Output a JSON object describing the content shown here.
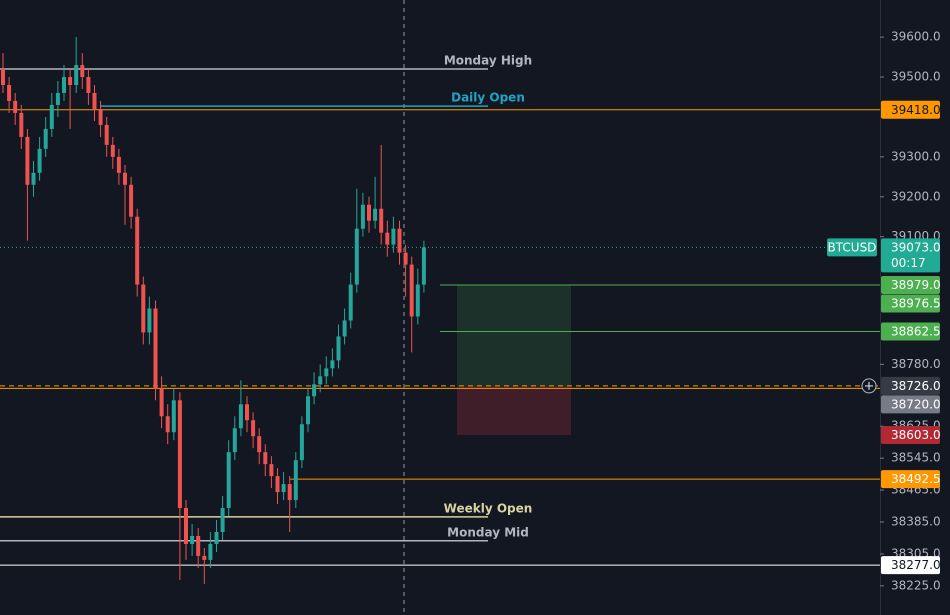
{
  "chart_data": {
    "type": "candlestick",
    "symbol": "BTCUSD",
    "countdown": "00:17",
    "ylim": [
      38152,
      39693
    ],
    "yticks": [
      {
        "value": 39600,
        "label": "39600.0"
      },
      {
        "value": 39500,
        "label": "39500.0"
      },
      {
        "value": 39300,
        "label": "39300.0"
      },
      {
        "value": 39200,
        "label": "39200.0"
      },
      {
        "value": 39100,
        "label": "39100.0"
      },
      {
        "value": 38780,
        "label": "38780.0"
      },
      {
        "value": 38625,
        "label": "38625.0"
      },
      {
        "value": 38545,
        "label": "38545.0"
      },
      {
        "value": 38465,
        "label": "38465.0"
      },
      {
        "value": 38385,
        "label": "38385.0"
      },
      {
        "value": 38305,
        "label": "38305.0"
      },
      {
        "value": 38225,
        "label": "38225.0"
      }
    ],
    "up_color": "#26a69a",
    "down_color": "#ef5350",
    "candles": [
      {
        "o": 39520,
        "h": 39560,
        "l": 39460,
        "c": 39480
      },
      {
        "o": 39480,
        "h": 39500,
        "l": 39410,
        "c": 39440
      },
      {
        "o": 39440,
        "h": 39460,
        "l": 39380,
        "c": 39410
      },
      {
        "o": 39410,
        "h": 39430,
        "l": 39320,
        "c": 39350
      },
      {
        "o": 39350,
        "h": 39370,
        "l": 39090,
        "c": 39230
      },
      {
        "o": 39230,
        "h": 39290,
        "l": 39200,
        "c": 39260
      },
      {
        "o": 39260,
        "h": 39350,
        "l": 39240,
        "c": 39320
      },
      {
        "o": 39320,
        "h": 39400,
        "l": 39300,
        "c": 39370
      },
      {
        "o": 39370,
        "h": 39460,
        "l": 39350,
        "c": 39430
      },
      {
        "o": 39430,
        "h": 39490,
        "l": 39400,
        "c": 39460
      },
      {
        "o": 39460,
        "h": 39530,
        "l": 39440,
        "c": 39500
      },
      {
        "o": 39500,
        "h": 39520,
        "l": 39370,
        "c": 39480
      },
      {
        "o": 39480,
        "h": 39600,
        "l": 39460,
        "c": 39530
      },
      {
        "o": 39530,
        "h": 39560,
        "l": 39470,
        "c": 39500
      },
      {
        "o": 39500,
        "h": 39520,
        "l": 39430,
        "c": 39460
      },
      {
        "o": 39460,
        "h": 39480,
        "l": 39390,
        "c": 39420
      },
      {
        "o": 39420,
        "h": 39440,
        "l": 39350,
        "c": 39380
      },
      {
        "o": 39380,
        "h": 39400,
        "l": 39300,
        "c": 39330
      },
      {
        "o": 39330,
        "h": 39350,
        "l": 39270,
        "c": 39300
      },
      {
        "o": 39300,
        "h": 39320,
        "l": 39230,
        "c": 39260
      },
      {
        "o": 39260,
        "h": 39280,
        "l": 39130,
        "c": 39230
      },
      {
        "o": 39230,
        "h": 39250,
        "l": 39120,
        "c": 39150
      },
      {
        "o": 39150,
        "h": 39170,
        "l": 38950,
        "c": 38980
      },
      {
        "o": 38980,
        "h": 39000,
        "l": 38830,
        "c": 38860
      },
      {
        "o": 38860,
        "h": 38950,
        "l": 38830,
        "c": 38920
      },
      {
        "o": 38920,
        "h": 38940,
        "l": 38690,
        "c": 38720
      },
      {
        "o": 38720,
        "h": 38750,
        "l": 38620,
        "c": 38650
      },
      {
        "o": 38650,
        "h": 38680,
        "l": 38580,
        "c": 38610
      },
      {
        "o": 38610,
        "h": 38720,
        "l": 38590,
        "c": 38690
      },
      {
        "o": 38690,
        "h": 38710,
        "l": 38240,
        "c": 38420
      },
      {
        "o": 38420,
        "h": 38440,
        "l": 38290,
        "c": 38330
      },
      {
        "o": 38330,
        "h": 38380,
        "l": 38300,
        "c": 38350
      },
      {
        "o": 38350,
        "h": 38370,
        "l": 38270,
        "c": 38300
      },
      {
        "o": 38300,
        "h": 38320,
        "l": 38230,
        "c": 38290
      },
      {
        "o": 38290,
        "h": 38360,
        "l": 38270,
        "c": 38330
      },
      {
        "o": 38330,
        "h": 38390,
        "l": 38310,
        "c": 38360
      },
      {
        "o": 38360,
        "h": 38450,
        "l": 38340,
        "c": 38420
      },
      {
        "o": 38420,
        "h": 38590,
        "l": 38400,
        "c": 38560
      },
      {
        "o": 38560,
        "h": 38650,
        "l": 38540,
        "c": 38620
      },
      {
        "o": 38620,
        "h": 38740,
        "l": 38600,
        "c": 38680
      },
      {
        "o": 38680,
        "h": 38700,
        "l": 38610,
        "c": 38640
      },
      {
        "o": 38640,
        "h": 38660,
        "l": 38570,
        "c": 38600
      },
      {
        "o": 38600,
        "h": 38620,
        "l": 38530,
        "c": 38560
      },
      {
        "o": 38560,
        "h": 38580,
        "l": 38500,
        "c": 38530
      },
      {
        "o": 38530,
        "h": 38550,
        "l": 38470,
        "c": 38500
      },
      {
        "o": 38500,
        "h": 38520,
        "l": 38430,
        "c": 38460
      },
      {
        "o": 38460,
        "h": 38510,
        "l": 38440,
        "c": 38480
      },
      {
        "o": 38480,
        "h": 38500,
        "l": 38360,
        "c": 38440
      },
      {
        "o": 38440,
        "h": 38560,
        "l": 38420,
        "c": 38540
      },
      {
        "o": 38540,
        "h": 38650,
        "l": 38520,
        "c": 38630
      },
      {
        "o": 38630,
        "h": 38720,
        "l": 38610,
        "c": 38700
      },
      {
        "o": 38700,
        "h": 38760,
        "l": 38680,
        "c": 38730
      },
      {
        "o": 38730,
        "h": 38780,
        "l": 38710,
        "c": 38750
      },
      {
        "o": 38750,
        "h": 38800,
        "l": 38730,
        "c": 38770
      },
      {
        "o": 38770,
        "h": 38820,
        "l": 38750,
        "c": 38790
      },
      {
        "o": 38790,
        "h": 38880,
        "l": 38770,
        "c": 38850
      },
      {
        "o": 38850,
        "h": 38920,
        "l": 38830,
        "c": 38890
      },
      {
        "o": 38890,
        "h": 39010,
        "l": 38870,
        "c": 38980
      },
      {
        "o": 38980,
        "h": 39220,
        "l": 38960,
        "c": 39120
      },
      {
        "o": 39120,
        "h": 39210,
        "l": 39100,
        "c": 39180
      },
      {
        "o": 39180,
        "h": 39200,
        "l": 39110,
        "c": 39140
      },
      {
        "o": 39140,
        "h": 39250,
        "l": 39120,
        "c": 39170
      },
      {
        "o": 39170,
        "h": 39330,
        "l": 39080,
        "c": 39110
      },
      {
        "o": 39110,
        "h": 39140,
        "l": 39050,
        "c": 39080
      },
      {
        "o": 39080,
        "h": 39150,
        "l": 39060,
        "c": 39120
      },
      {
        "o": 39120,
        "h": 39140,
        "l": 39030,
        "c": 39060
      },
      {
        "o": 39060,
        "h": 39080,
        "l": 38950,
        "c": 39030
      },
      {
        "o": 39030,
        "h": 39050,
        "l": 38810,
        "c": 38900
      },
      {
        "o": 38900,
        "h": 39020,
        "l": 38880,
        "c": 38980
      },
      {
        "o": 38980,
        "h": 39090,
        "l": 38960,
        "c": 39073
      }
    ],
    "levels": [
      {
        "label": "Monday High",
        "value": 39520,
        "color": "#b2b5be"
      },
      {
        "label": "Daily Open",
        "value": 39427,
        "color": "#22a3c5"
      },
      {
        "label": "Weekly Open",
        "value": 38398,
        "color": "#d8d3a0"
      },
      {
        "label": "Monday Mid",
        "value": 38338,
        "color": "#b2b5be"
      }
    ],
    "price_labels": [
      {
        "value": 39418,
        "label": "39418.0",
        "color": "#ff9800"
      },
      {
        "value": 39073,
        "label": "39073.0",
        "color": "#22ab94"
      },
      {
        "value": 38979,
        "label": "38979.0",
        "color": "#4caf50"
      },
      {
        "value": 38976.5,
        "label": "38976.5",
        "color": "#4caf50"
      },
      {
        "value": 38862.5,
        "label": "38862.5",
        "color": "#4caf50"
      },
      {
        "value": 38726,
        "label": "38726.0",
        "color": "#363a45"
      },
      {
        "value": 38720,
        "label": "38720.0",
        "color": "#787b86"
      },
      {
        "value": 38603,
        "label": "38603.0",
        "color": "#b22833"
      },
      {
        "value": 38492.5,
        "label": "38492.5",
        "color": "#ff9800"
      },
      {
        "value": 38277,
        "label": "38277.0",
        "color": "#ffffff"
      }
    ]
  }
}
